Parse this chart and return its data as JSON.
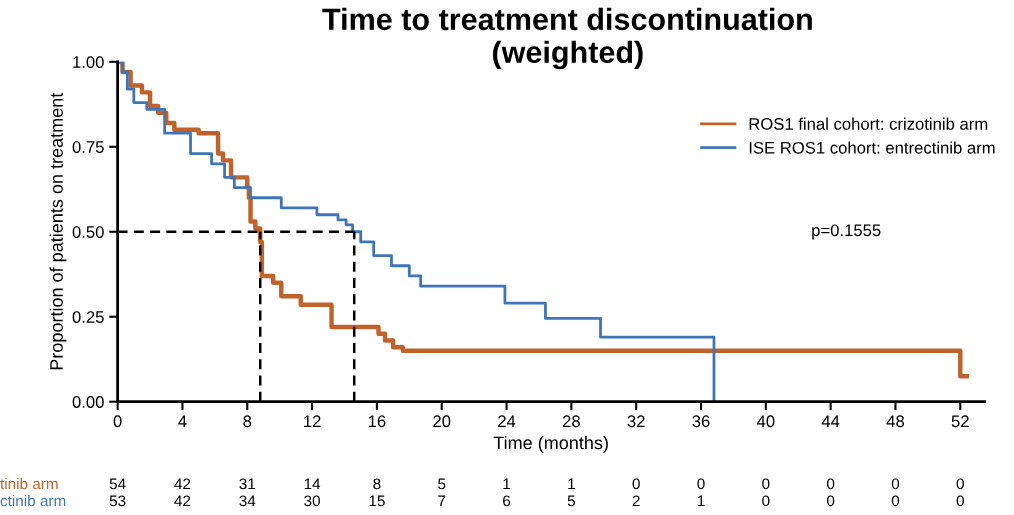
{
  "chart_data": {
    "type": "step",
    "title": "Time to treatment discontinuation\n(weighted)",
    "xlabel": "Time (months)",
    "ylabel": "Proportion of patients on treatment",
    "series": [
      {
        "name": "ROS1 final cohort: crizotinib arm",
        "color": "#c0622b",
        "x": [
          0,
          0.3,
          0.8,
          1.5,
          2,
          2.5,
          3,
          3.5,
          5,
          6.2,
          6.5,
          7,
          8,
          8.1,
          8.2,
          8.5,
          8.8,
          8.9,
          9.6,
          10.1,
          11.3,
          13.2,
          16.1,
          16.5,
          17,
          17.6,
          52,
          52.4
        ],
        "values": [
          1.0,
          0.97,
          0.93,
          0.91,
          0.87,
          0.85,
          0.82,
          0.8,
          0.79,
          0.73,
          0.71,
          0.66,
          0.63,
          0.6,
          0.53,
          0.51,
          0.47,
          0.37,
          0.35,
          0.31,
          0.285,
          0.22,
          0.2,
          0.18,
          0.16,
          0.15,
          0.075,
          0.075
        ]
      },
      {
        "name": "ISE ROS1 cohort: entrectinib arm",
        "color": "#3f75b8",
        "x": [
          0,
          0.3,
          0.6,
          1,
          1.8,
          2.9,
          4.5,
          5.8,
          6.6,
          7.2,
          8.2,
          10.1,
          12.3,
          13.6,
          14.1,
          14.5,
          15.0,
          15.8,
          16.9,
          18.0,
          18.7,
          23.9,
          26.4,
          29.8,
          36.8
        ],
        "values": [
          1.0,
          0.97,
          0.92,
          0.88,
          0.86,
          0.79,
          0.73,
          0.7,
          0.66,
          0.63,
          0.6,
          0.57,
          0.55,
          0.535,
          0.52,
          0.5,
          0.47,
          0.43,
          0.4,
          0.37,
          0.34,
          0.29,
          0.245,
          0.19,
          0.0
        ]
      }
    ],
    "xlim": [
      0,
      53.5
    ],
    "ylim": [
      0,
      1.0
    ],
    "xticks": [
      0,
      4,
      8,
      12,
      16,
      20,
      24,
      28,
      32,
      36,
      40,
      44,
      48,
      52
    ],
    "yticks": [
      {
        "value": 0,
        "label": "0.00"
      },
      {
        "value": 0.25,
        "label": "0.25"
      },
      {
        "value": 0.5,
        "label": "0.50"
      },
      {
        "value": 0.75,
        "label": "0.75"
      },
      {
        "value": 1.0,
        "label": "1.00"
      }
    ],
    "ref_lines": [
      {
        "axis": "y",
        "value": 0.5,
        "color": "#000000",
        "line_style": "dashed"
      },
      {
        "axis": "x",
        "value": 8.8,
        "color": "#000000",
        "line_style": "dashed"
      },
      {
        "axis": "x",
        "value": 14.6,
        "color": "#000000",
        "line_style": "dashed"
      }
    ],
    "legend": "top right",
    "grid": false,
    "line_style": "solid",
    "annotations": [
      "p=0.1555",
      "tinib arm",
      "54 42 31 14 8 5 1 1 0 0 0 0 0 0",
      "ctinib arm",
      "53 42 34 30 15 7 6 5 2 1 0 0 0 0"
    ]
  }
}
